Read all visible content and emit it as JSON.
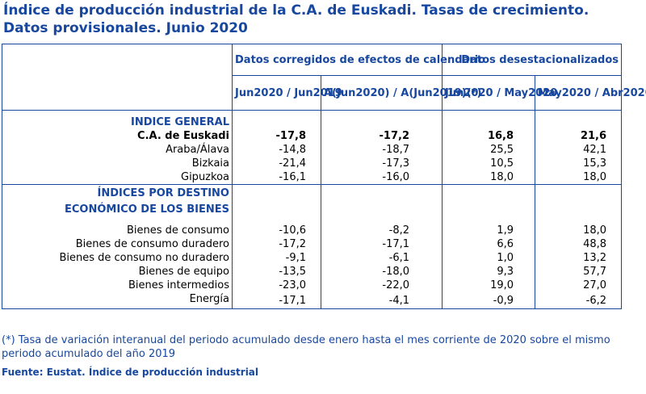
{
  "title_line1": "Índice de producción industrial de la C.A. de Euskadi. Tasas de crecimiento.",
  "title_line2": "Datos provisionales. Junio 2020",
  "header": {
    "group1": "Datos corregidos de efectos de calendario",
    "group2": "Datos desestacionalizados",
    "col1": "Jun2020 / Jun2019",
    "col2": "A(Jun2020) / A(Jun2019)(*)",
    "col3": "Jun2020 / May2020",
    "col4": "May2020 / Abr2020"
  },
  "section1": {
    "heading": "INDICE GENERAL",
    "rows": [
      {
        "label": "C.A. de Euskadi",
        "v1": "-17,8",
        "v2": "-17,2",
        "v3": "16,8",
        "v4": "21,6"
      },
      {
        "label": "Araba/Álava",
        "v1": "-14,8",
        "v2": "-18,7",
        "v3": "25,5",
        "v4": "42,1"
      },
      {
        "label": "Bizkaia",
        "v1": "-21,4",
        "v2": "-17,3",
        "v3": "10,5",
        "v4": "15,3"
      },
      {
        "label": "Gipuzkoa",
        "v1": "-16,1",
        "v2": "-16,0",
        "v3": "18,0",
        "v4": "18,0"
      }
    ]
  },
  "section2": {
    "heading_line1": "ÍNDICES POR DESTINO",
    "heading_line2": "ECONÓMICO DE LOS BIENES",
    "rows": [
      {
        "label": "Bienes de consumo",
        "v1": "-10,6",
        "v2": "-8,2",
        "v3": "1,9",
        "v4": "18,0"
      },
      {
        "label": "Bienes de consumo duradero",
        "v1": "-17,2",
        "v2": "-17,1",
        "v3": "6,6",
        "v4": "48,8"
      },
      {
        "label": "Bienes de consumo no duradero",
        "v1": "-9,1",
        "v2": "-6,1",
        "v3": "1,0",
        "v4": "13,2"
      },
      {
        "label": "Bienes de equipo",
        "v1": "-13,5",
        "v2": "-18,0",
        "v3": "9,3",
        "v4": "57,7"
      },
      {
        "label": "Bienes intermedios",
        "v1": "-23,0",
        "v2": "-22,0",
        "v3": "19,0",
        "v4": "27,0"
      },
      {
        "label": "Energía",
        "v1": "-17,1",
        "v2": "-4,1",
        "v3": "-0,9",
        "v4": "-6,2"
      }
    ]
  },
  "footnote": "(*) Tasa de variación interanual del periodo acumulado desde enero hasta el mes corriente de 2020 sobre el mismo periodo acumulado del año 2019",
  "source": "Fuente: Eustat. Índice de producción industrial"
}
